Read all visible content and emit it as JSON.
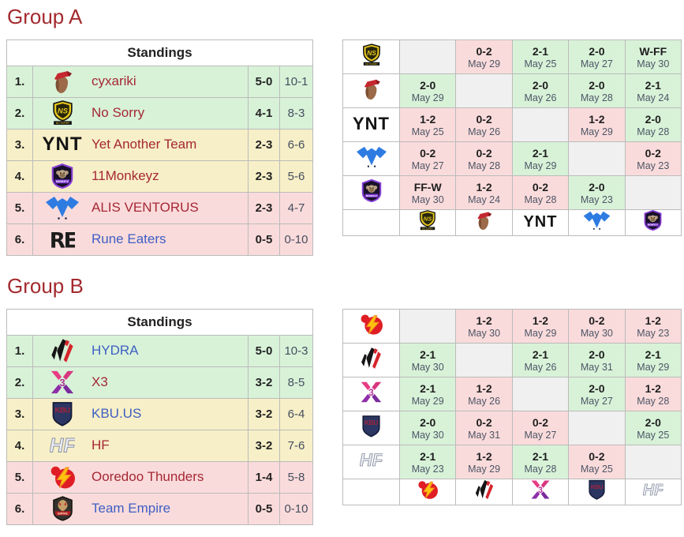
{
  "colors": {
    "heading": "#a32a2e",
    "border": "#bbbbbb",
    "win": "#d8f2d8",
    "loss": "#fadbdb",
    "stay": "#f7efc7",
    "self": "#f0f0f0",
    "red_link": "#a52835",
    "blue_link": "#3d5fc4",
    "muted": "#454e5f",
    "date_text": "#4c5566"
  },
  "groups": [
    {
      "heading": "Group A",
      "standings": {
        "title": "Standings",
        "rows": [
          {
            "rank": "1.",
            "team": "cyxariki",
            "icon": "cyxariki",
            "record": "5-0",
            "games": "10-1",
            "zone": "up",
            "link_color": "red"
          },
          {
            "rank": "2.",
            "team": "No Sorry",
            "icon": "nosorry",
            "record": "4-1",
            "games": "8-3",
            "zone": "up",
            "link_color": "red"
          },
          {
            "rank": "3.",
            "team": "Yet Another Team",
            "icon": "ynt",
            "record": "2-3",
            "games": "6-6",
            "zone": "mid",
            "link_color": "red"
          },
          {
            "rank": "4.",
            "team": "11Monkeyz",
            "icon": "monkeyz",
            "record": "2-3",
            "games": "5-6",
            "zone": "mid",
            "link_color": "red"
          },
          {
            "rank": "5.",
            "team": "ALIS VENTORUS",
            "icon": "alis",
            "record": "2-3",
            "games": "4-7",
            "zone": "down",
            "link_color": "red"
          },
          {
            "rank": "6.",
            "team": "Rune Eaters",
            "icon": "rune",
            "record": "0-5",
            "games": "0-10",
            "zone": "down",
            "link_color": "blue"
          }
        ]
      },
      "crosstable": {
        "rows": [
          {
            "icon": "nosorry",
            "cells": [
              {
                "self": true
              },
              {
                "score": "0-2",
                "date": "May 29",
                "result": "loss"
              },
              {
                "score": "2-1",
                "date": "May 25",
                "result": "win"
              },
              {
                "score": "2-0",
                "date": "May 27",
                "result": "win"
              },
              {
                "score": "W-FF",
                "date": "May 30",
                "result": "win"
              }
            ]
          },
          {
            "icon": "cyxariki",
            "cells": [
              {
                "score": "2-0",
                "date": "May 29",
                "result": "win"
              },
              {
                "self": true
              },
              {
                "score": "2-0",
                "date": "May 26",
                "result": "win"
              },
              {
                "score": "2-0",
                "date": "May 28",
                "result": "win"
              },
              {
                "score": "2-1",
                "date": "May 24",
                "result": "win"
              }
            ]
          },
          {
            "icon": "ynt",
            "cells": [
              {
                "score": "1-2",
                "date": "May 25",
                "result": "loss"
              },
              {
                "score": "0-2",
                "date": "May 26",
                "result": "loss"
              },
              {
                "self": true
              },
              {
                "score": "1-2",
                "date": "May 29",
                "result": "loss"
              },
              {
                "score": "2-0",
                "date": "May 28",
                "result": "win"
              }
            ]
          },
          {
            "icon": "alis",
            "cells": [
              {
                "score": "0-2",
                "date": "May 27",
                "result": "loss"
              },
              {
                "score": "0-2",
                "date": "May 28",
                "result": "loss"
              },
              {
                "score": "2-1",
                "date": "May 29",
                "result": "win"
              },
              {
                "self": true
              },
              {
                "score": "0-2",
                "date": "May 23",
                "result": "loss"
              }
            ]
          },
          {
            "icon": "monkeyz",
            "cells": [
              {
                "score": "FF-W",
                "date": "May 30",
                "result": "loss"
              },
              {
                "score": "1-2",
                "date": "May 24",
                "result": "loss"
              },
              {
                "score": "0-2",
                "date": "May 28",
                "result": "loss"
              },
              {
                "score": "2-0",
                "date": "May 23",
                "result": "win"
              },
              {
                "self": true
              }
            ]
          }
        ],
        "footer_icons": [
          "nosorry",
          "cyxariki",
          "ynt",
          "alis",
          "monkeyz"
        ]
      }
    },
    {
      "heading": "Group B",
      "standings": {
        "title": "Standings",
        "rows": [
          {
            "rank": "1.",
            "team": "HYDRA",
            "icon": "hydra",
            "record": "5-0",
            "games": "10-3",
            "zone": "up",
            "link_color": "blue"
          },
          {
            "rank": "2.",
            "team": "X3",
            "icon": "x3",
            "record": "3-2",
            "games": "8-5",
            "zone": "up",
            "link_color": "red"
          },
          {
            "rank": "3.",
            "team": "KBU.US",
            "icon": "kbu",
            "record": "3-2",
            "games": "6-4",
            "zone": "mid",
            "link_color": "blue"
          },
          {
            "rank": "4.",
            "team": "HF",
            "icon": "hf",
            "record": "3-2",
            "games": "7-6",
            "zone": "mid",
            "link_color": "red"
          },
          {
            "rank": "5.",
            "team": "Ooredoo Thunders",
            "icon": "ooredoo",
            "record": "1-4",
            "games": "5-8",
            "zone": "down",
            "link_color": "red"
          },
          {
            "rank": "6.",
            "team": "Team Empire",
            "icon": "empire",
            "record": "0-5",
            "games": "0-10",
            "zone": "down",
            "link_color": "blue"
          }
        ]
      },
      "crosstable": {
        "rows": [
          {
            "icon": "ooredoo",
            "cells": [
              {
                "self": true
              },
              {
                "score": "1-2",
                "date": "May 30",
                "result": "loss"
              },
              {
                "score": "1-2",
                "date": "May 29",
                "result": "loss"
              },
              {
                "score": "0-2",
                "date": "May 30",
                "result": "loss"
              },
              {
                "score": "1-2",
                "date": "May 23",
                "result": "loss"
              }
            ]
          },
          {
            "icon": "hydra",
            "cells": [
              {
                "score": "2-1",
                "date": "May 30",
                "result": "win"
              },
              {
                "self": true
              },
              {
                "score": "2-1",
                "date": "May 26",
                "result": "win"
              },
              {
                "score": "2-0",
                "date": "May 31",
                "result": "win"
              },
              {
                "score": "2-1",
                "date": "May 29",
                "result": "win"
              }
            ]
          },
          {
            "icon": "x3",
            "cells": [
              {
                "score": "2-1",
                "date": "May 29",
                "result": "win"
              },
              {
                "score": "1-2",
                "date": "May 26",
                "result": "loss"
              },
              {
                "self": true
              },
              {
                "score": "2-0",
                "date": "May 27",
                "result": "win"
              },
              {
                "score": "1-2",
                "date": "May 28",
                "result": "loss"
              }
            ]
          },
          {
            "icon": "kbu",
            "cells": [
              {
                "score": "2-0",
                "date": "May 30",
                "result": "win"
              },
              {
                "score": "0-2",
                "date": "May 31",
                "result": "loss"
              },
              {
                "score": "0-2",
                "date": "May 27",
                "result": "loss"
              },
              {
                "self": true
              },
              {
                "score": "2-0",
                "date": "May 25",
                "result": "win"
              }
            ]
          },
          {
            "icon": "hf",
            "cells": [
              {
                "score": "2-1",
                "date": "May 23",
                "result": "win"
              },
              {
                "score": "1-2",
                "date": "May 29",
                "result": "loss"
              },
              {
                "score": "2-1",
                "date": "May 28",
                "result": "win"
              },
              {
                "score": "0-2",
                "date": "May 25",
                "result": "loss"
              },
              {
                "self": true
              }
            ]
          }
        ],
        "footer_icons": [
          "ooredoo",
          "hydra",
          "x3",
          "kbu",
          "hf"
        ]
      }
    }
  ]
}
